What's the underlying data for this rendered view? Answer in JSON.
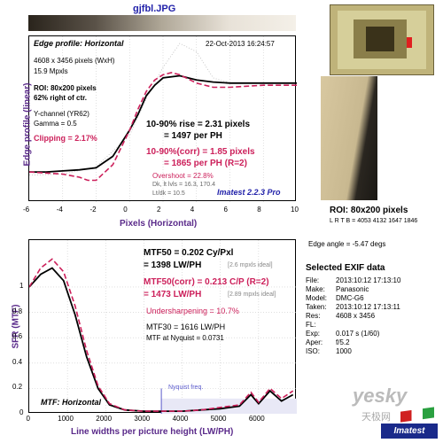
{
  "window": {
    "title": "gjfbl.JPG"
  },
  "edge_panel": {
    "heading": "Edge profile: Horizontal",
    "timestamp": "22-Oct-2013 16:24:57",
    "dims": "4608 x 3456 pixels (WxH)",
    "mpxls": "15.9 Mpxls",
    "roi_line1": "ROI: 80x200 pixels",
    "roi_line2": "62% right of ctr.",
    "channel": "Y-channel (YR62)",
    "gamma": "Gamma = 0.5",
    "clipping": "Clipping =  2.17%",
    "rise": "10-90% rise = 2.31 pixels",
    "rise_ph": "= 1497 per PH",
    "corr": "10-90%(corr) = 1.85 pixels",
    "corr_ph": "= 1865 per PH  (R=2)",
    "overshoot": "Overshoot = 22.8%",
    "dk_lt": "Dk, lt lvls = 16.3, 170.4",
    "ltdk": "Lt/dk = 10.5",
    "imatest": "Imatest 2.2.3 Pro",
    "ylabel": "Edge profile (linear)",
    "xlabel": "Pixels (Horizontal)",
    "xticks": [
      "-6",
      "-4",
      "-2",
      "0",
      "2",
      "4",
      "6",
      "8",
      "10"
    ]
  },
  "mtf_panel": {
    "mtf50": "MTF50 = 0.202 Cy/Pxl",
    "mtf50_lwph": "= 1398 LW/PH",
    "mtf50_ideal": "[2.6 mpxls ideal]",
    "mtf50corr": "MTF50(corr) = 0.213 C/P  (R=2)",
    "mtf50corr_lwph": "= 1473 LW/PH",
    "mtf50corr_ideal": "[2.89 mpxls ideal]",
    "undersharp": "Undersharpening = 10.7%",
    "mtf30": "MTF30 = 1616 LW/PH",
    "nyq_val": "MTF at Nyquist = 0.0731",
    "nyquist": "Nyquist freq.",
    "heading": "MTF: Horizontal",
    "ylabel": "SFR (MTF)",
    "xlabel": "Line widths per picture height (LW/PH)",
    "xticks": [
      "0",
      "1000",
      "2000",
      "3000",
      "4000",
      "5000",
      "6000"
    ],
    "yticks": [
      "1",
      "0.8",
      "0.6",
      "0.4",
      "0.2",
      "0"
    ]
  },
  "roi_panel": {
    "label": "ROI: 80x200 pixels",
    "coords": "L R T B = 4053 4132  1647 1846"
  },
  "exif": {
    "edge_angle": "Edge angle = -5.47 degs",
    "title": "Selected EXIF data",
    "rows": [
      {
        "k": "File:",
        "v": "2013:10:12 17:13:10"
      },
      {
        "k": "Make:",
        "v": "Panasonic"
      },
      {
        "k": "Model:",
        "v": "DMC-G6"
      },
      {
        "k": "Taken:",
        "v": "2013:10:12 17:13:11"
      },
      {
        "k": "Res:",
        "v": "4608 x 3456"
      },
      {
        "k": "FL:",
        "v": ""
      },
      {
        "k": "Exp:",
        "v": "0.017 s  (1/60)"
      },
      {
        "k": "Aper:",
        "v": "f/5.2"
      },
      {
        "k": "ISO:",
        "v": "1000"
      }
    ]
  },
  "watermark": {
    "text1": "yesky",
    "text2": "天极网",
    "brand": "Imatest"
  },
  "colors": {
    "measured": "#000000",
    "corrected": "#cc1f5a",
    "nyquist": "#5a5acc",
    "accent": "#2222aa"
  },
  "chart_data": [
    {
      "type": "line",
      "title": "Edge profile: Horizontal",
      "xlabel": "Pixels (Horizontal)",
      "ylabel": "Edge profile (linear)",
      "xlim": [
        -6,
        10
      ],
      "series": [
        {
          "x": [
            -6,
            -5,
            -4,
            -3,
            -2,
            -1,
            0,
            0.5,
            1,
            1.5,
            2,
            3,
            4,
            5,
            6,
            7,
            8,
            9,
            10
          ],
          "values": [
            0.05,
            0.05,
            0.06,
            0.07,
            0.09,
            0.2,
            0.45,
            0.6,
            0.78,
            0.88,
            0.95,
            0.97,
            0.93,
            0.91,
            0.9,
            0.9,
            0.9,
            0.9,
            0.9
          ]
        },
        {
          "x": [
            -6,
            -5,
            -4,
            -3,
            -2.5,
            -2,
            -1,
            0,
            0.5,
            1,
            1.5,
            2,
            2.5,
            3,
            4,
            5,
            6,
            7,
            8,
            9,
            10
          ],
          "values": [
            0.05,
            0.04,
            0.03,
            0.0,
            -0.03,
            -0.03,
            0.12,
            0.45,
            0.65,
            0.82,
            0.93,
            0.98,
            1.0,
            0.98,
            0.9,
            0.86,
            0.86,
            0.87,
            0.88,
            0.88,
            0.88
          ]
        }
      ]
    },
    {
      "type": "line",
      "title": "MTF: Horizontal",
      "xlabel": "Line widths per picture height (LW/PH)",
      "ylabel": "SFR (MTF)",
      "xlim": [
        0,
        7000
      ],
      "ylim": [
        0,
        1.3
      ],
      "series": [
        {
          "x": [
            0,
            300,
            600,
            900,
            1200,
            1500,
            1800,
            2100,
            2500,
            3000,
            3500,
            4000,
            4500,
            5000,
            5500,
            5800,
            6000,
            6300,
            6600,
            6900
          ],
          "values": [
            1.0,
            1.1,
            1.15,
            1.05,
            0.78,
            0.45,
            0.2,
            0.07,
            0.03,
            0.02,
            0.02,
            0.02,
            0.03,
            0.04,
            0.06,
            0.15,
            0.08,
            0.18,
            0.1,
            0.15
          ]
        },
        {
          "x": [
            0,
            300,
            600,
            900,
            1200,
            1500,
            1800,
            2100,
            2500,
            3000,
            3500,
            4000,
            4500,
            5000,
            5500,
            5800,
            6000,
            6300,
            6600,
            6900
          ],
          "values": [
            1.0,
            1.15,
            1.22,
            1.12,
            0.85,
            0.5,
            0.22,
            0.08,
            0.03,
            0.02,
            0.02,
            0.02,
            0.03,
            0.05,
            0.07,
            0.17,
            0.09,
            0.2,
            0.12,
            0.18
          ]
        }
      ]
    }
  ]
}
